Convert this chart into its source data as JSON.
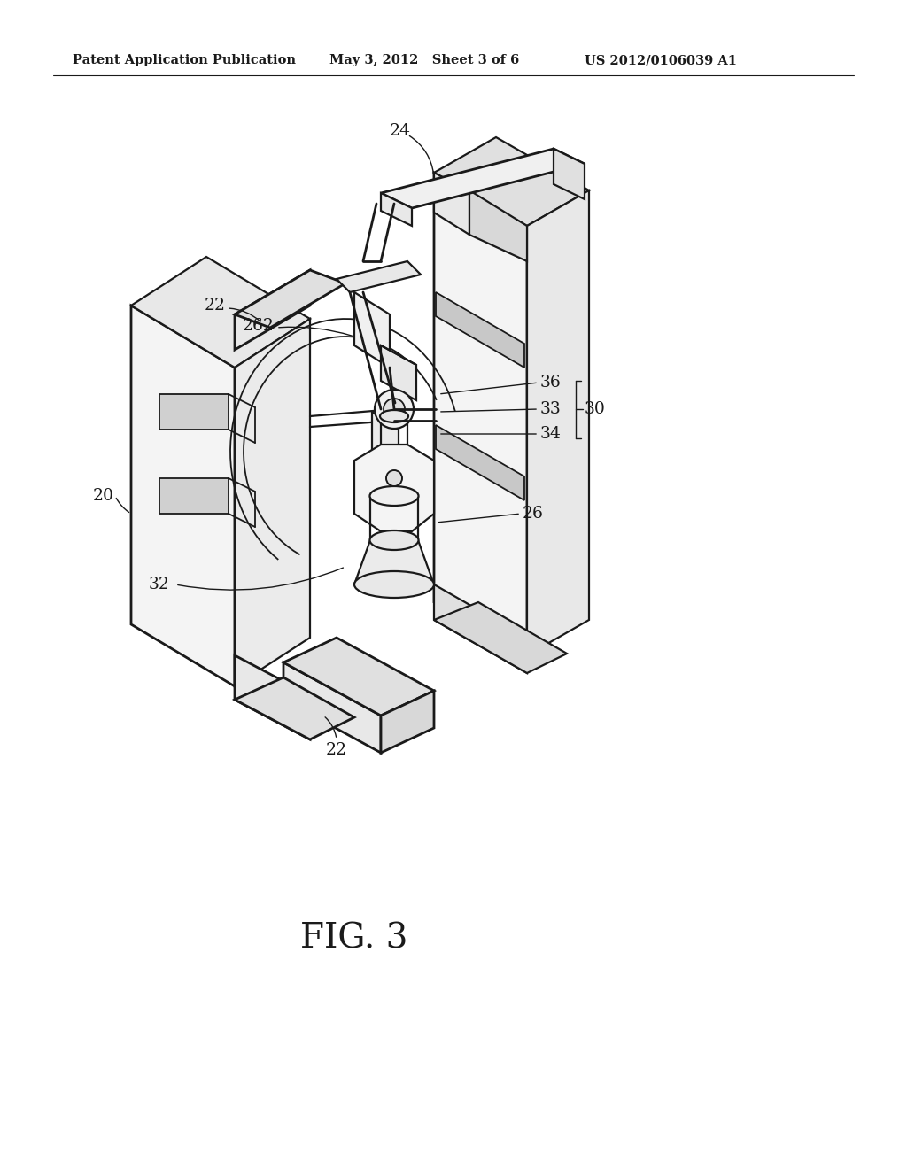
{
  "bg_color": "#ffffff",
  "line_color": "#1a1a1a",
  "header_left": "Patent Application Publication",
  "header_mid": "May 3, 2012   Sheet 3 of 6",
  "header_right": "US 2012/0106039 A1",
  "fig_caption": "FIG. 3",
  "header_fontsize": 10.5,
  "caption_fontsize": 28,
  "label_fontsize": 13.5,
  "lw_main": 1.6,
  "lw_thick": 2.0
}
